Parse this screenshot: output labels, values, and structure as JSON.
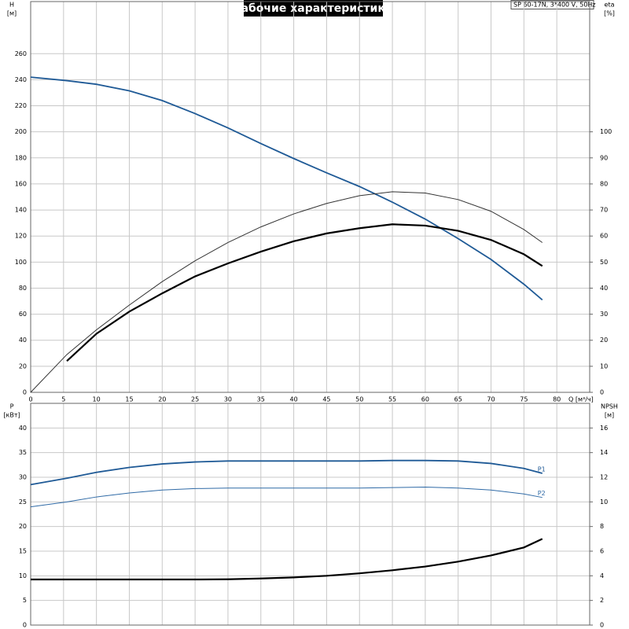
{
  "chart_data": [
    {
      "type": "line",
      "title": "Рабочие характеристики",
      "subtitle": "SP 60-17N, 3*400 V, 50Hz",
      "ylabel": "H",
      "yunit": "[м]",
      "y2label": "eta",
      "y2unit": "[%]",
      "xlabel": "Q [м³/ч]",
      "x": [
        0,
        5.5,
        10,
        15,
        20,
        25,
        30,
        35,
        40,
        45,
        50,
        55,
        60,
        65,
        70,
        75,
        77.8
      ],
      "xlim": [
        0,
        85
      ],
      "xticks": [
        0,
        5,
        10,
        15,
        20,
        25,
        30,
        35,
        40,
        45,
        50,
        55,
        60,
        65,
        70,
        75,
        80
      ],
      "ylim": [
        0,
        300
      ],
      "yticks": [
        0,
        20,
        40,
        60,
        80,
        100,
        120,
        140,
        160,
        180,
        200,
        220,
        240,
        260
      ],
      "y2lim": [
        0,
        150
      ],
      "y2ticks": [
        0,
        10,
        20,
        30,
        40,
        50,
        60,
        70,
        80,
        90,
        100
      ],
      "grid": true,
      "series": [
        {
          "color": "#1f5a96",
          "width": 1.8,
          "values": [
            242,
            239.3,
            236.5,
            231.5,
            224,
            214,
            203,
            191,
            179.5,
            168.5,
            158,
            146,
            133,
            118,
            102,
            83,
            71
          ]
        },
        {
          "color": "#000000",
          "width": 2.2,
          "axis": "y2",
          "values": [
            null,
            12,
            22.5,
            31,
            38,
            44.5,
            49.5,
            54,
            58,
            61,
            63,
            64.5,
            64,
            62,
            58.5,
            53,
            48.5
          ]
        },
        {
          "color": "#333333",
          "width": 1,
          "axis": "y2",
          "values": [
            0,
            14.5,
            24,
            33.5,
            42.5,
            50.5,
            57.5,
            63.5,
            68.5,
            72.5,
            75.5,
            77,
            76.5,
            74,
            69.5,
            62.5,
            57.5
          ]
        }
      ]
    },
    {
      "type": "line",
      "ylabel": "P",
      "yunit": "[кВт]",
      "y2label": "NPSH",
      "y2unit": "[м]",
      "x": [
        0,
        5.5,
        10,
        15,
        20,
        25,
        30,
        35,
        40,
        45,
        50,
        55,
        60,
        65,
        70,
        75,
        77.8
      ],
      "xlim": [
        0,
        85
      ],
      "xticks": [
        0,
        5,
        10,
        15,
        20,
        25,
        30,
        35,
        40,
        45,
        50,
        55,
        60,
        65,
        70,
        75,
        80
      ],
      "ylim": [
        0,
        45
      ],
      "yticks": [
        0,
        5,
        10,
        15,
        20,
        25,
        30,
        35,
        40
      ],
      "y2lim": [
        0,
        18
      ],
      "y2ticks": [
        0,
        2,
        4,
        6,
        8,
        10,
        12,
        14,
        16
      ],
      "grid": true,
      "series": [
        {
          "name": "P1",
          "color": "#1f5a96",
          "width": 1.8,
          "values": [
            28.5,
            29.8,
            31,
            32,
            32.7,
            33.1,
            33.3,
            33.3,
            33.3,
            33.3,
            33.3,
            33.4,
            33.4,
            33.3,
            32.8,
            31.8,
            30.8
          ]
        },
        {
          "name": "P2",
          "color": "#2f6aa6",
          "width": 1,
          "values": [
            24,
            25,
            26,
            26.8,
            27.4,
            27.7,
            27.8,
            27.8,
            27.8,
            27.8,
            27.8,
            27.9,
            28,
            27.8,
            27.4,
            26.6,
            25.9
          ]
        },
        {
          "color": "#000000",
          "width": 2.2,
          "axis": "y2",
          "values": [
            3.7,
            3.7,
            3.7,
            3.7,
            3.7,
            3.7,
            3.72,
            3.78,
            3.87,
            4.0,
            4.2,
            4.45,
            4.75,
            5.15,
            5.65,
            6.3,
            7.0
          ]
        }
      ]
    }
  ]
}
